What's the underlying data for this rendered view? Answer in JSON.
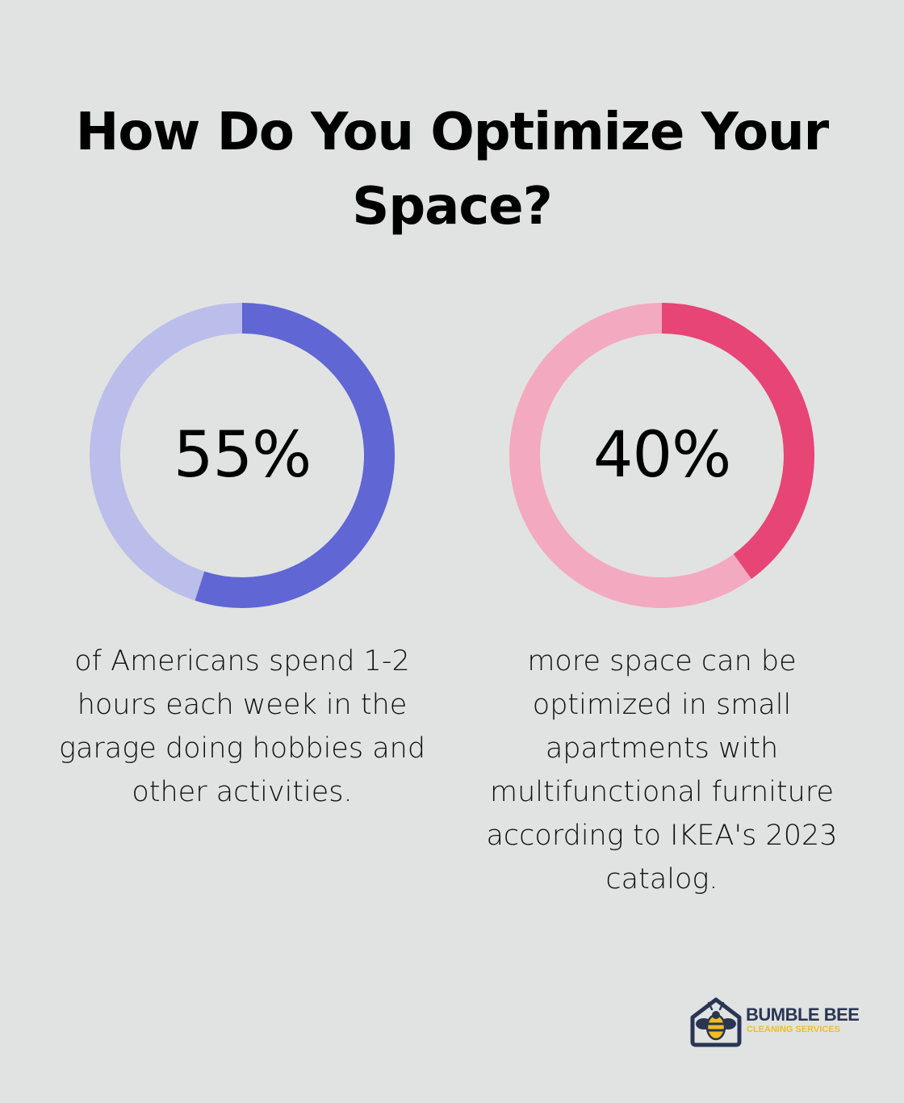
{
  "title": "How Do You Optimize Your Space?",
  "chart_data": [
    {
      "type": "pie",
      "variant": "donut",
      "value": 55,
      "max": 100,
      "label": "55%",
      "description": "of Americans spend 1-2 hours each week in the garage doing hobbies and other activities.",
      "colors": {
        "filled": "#6066d3",
        "track": "#bbbdea"
      }
    },
    {
      "type": "pie",
      "variant": "donut",
      "value": 40,
      "max": 100,
      "label": "40%",
      "description": "more space can be optimized in small apartments with multifunctional furniture according to IKEA's 2023 catalog.",
      "colors": {
        "filled": "#e64576",
        "track": "#f3a9c0"
      }
    }
  ],
  "logo": {
    "line1": "BUMBLE BEE",
    "line2": "CLEANING SERVICES",
    "icon": "bee-house-icon",
    "colors": {
      "navy": "#2a3553",
      "yellow": "#f2bd1d"
    }
  }
}
